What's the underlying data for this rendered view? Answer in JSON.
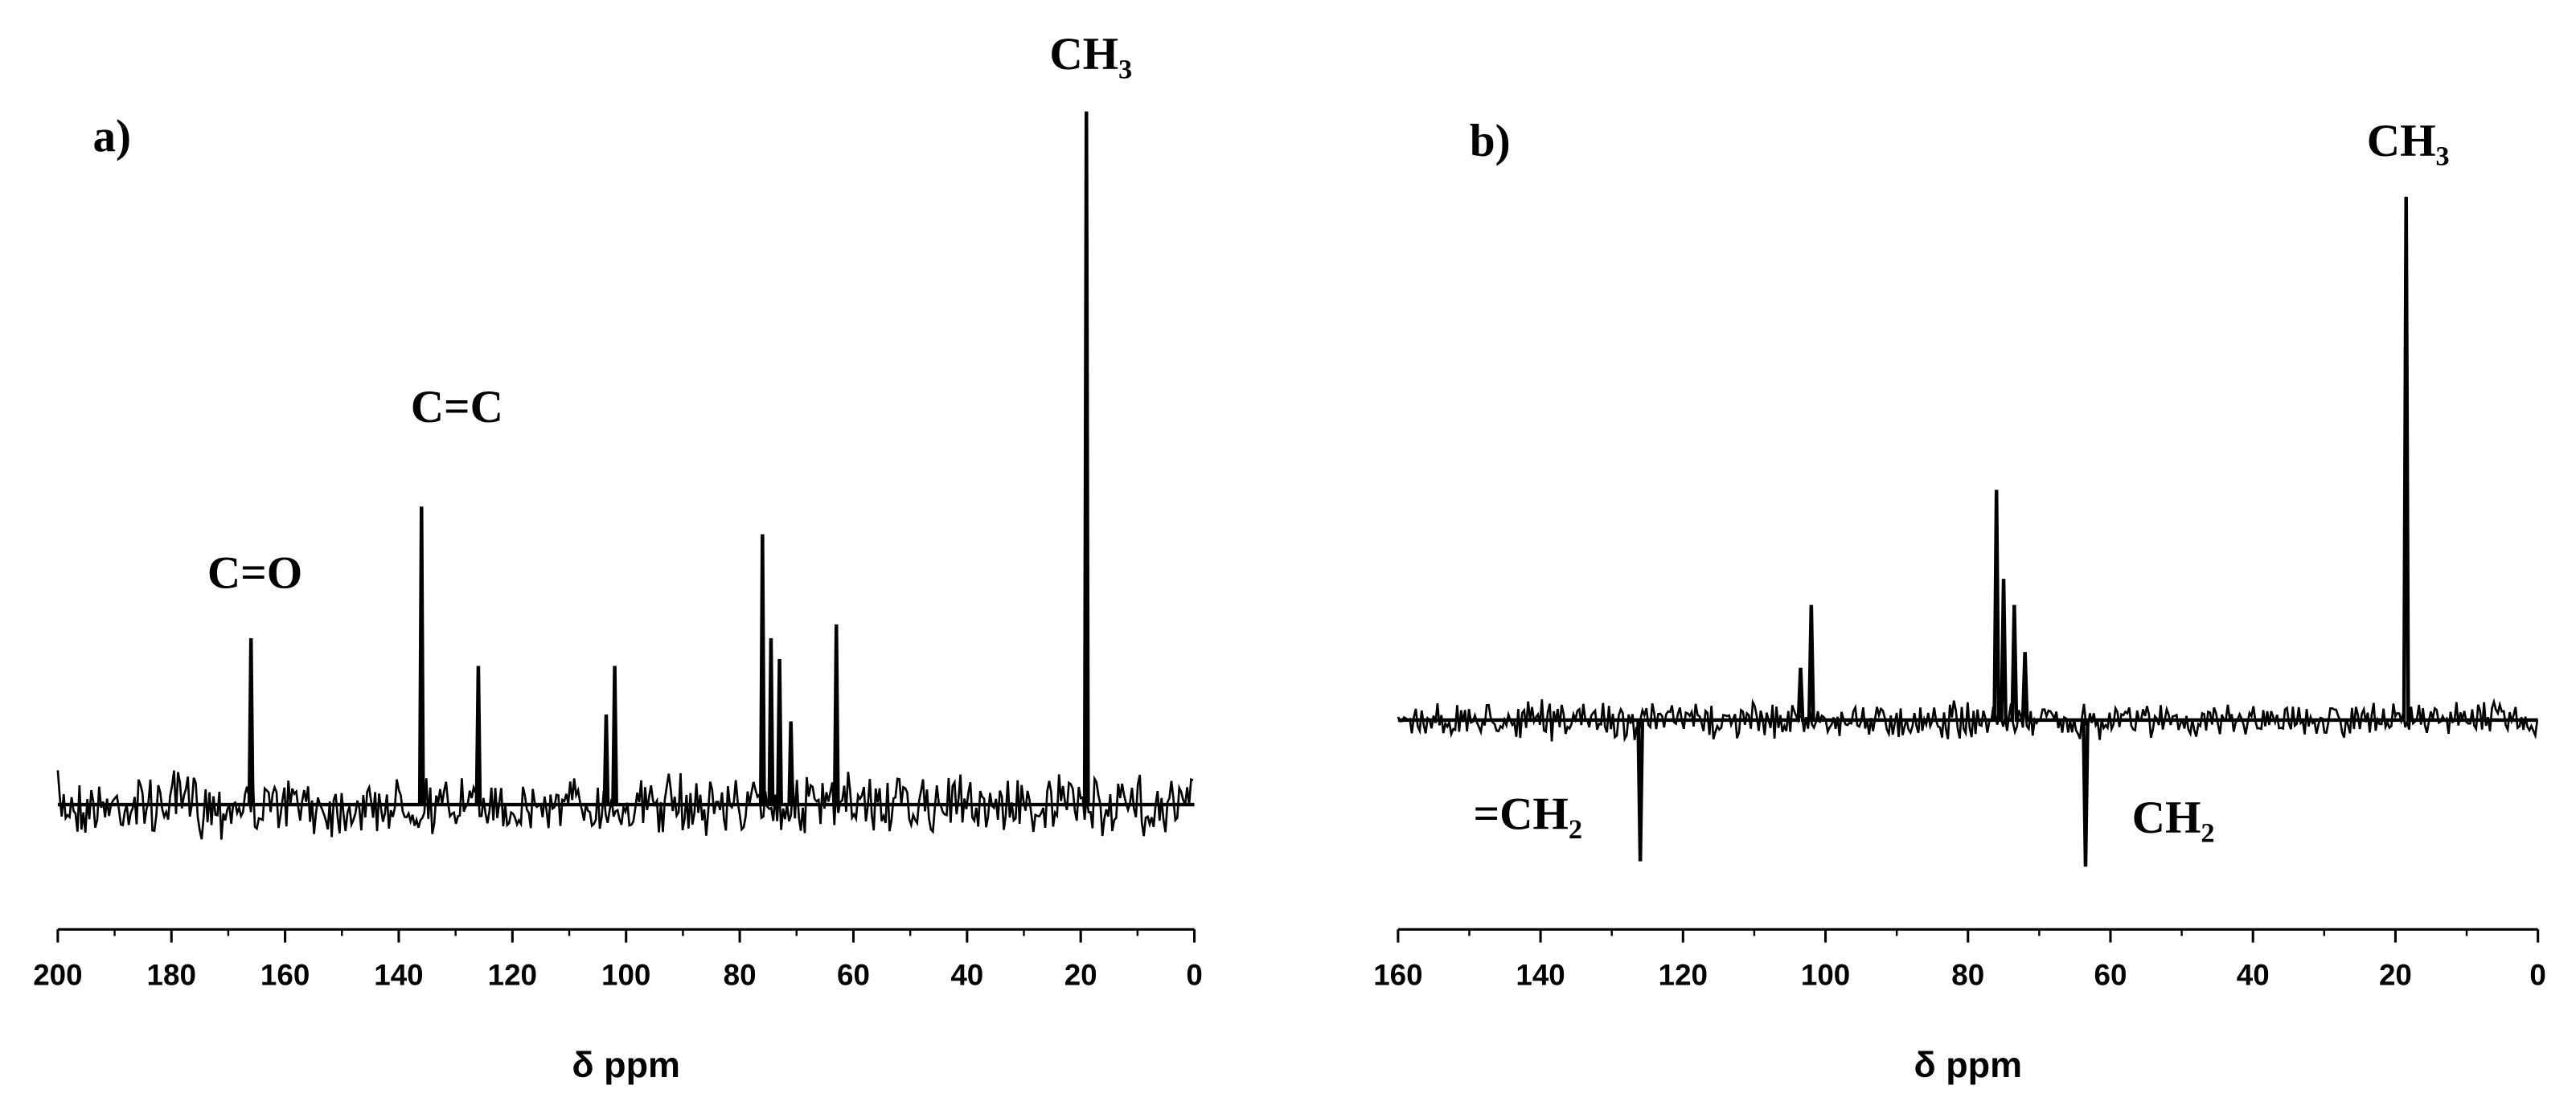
{
  "chart_data": [
    {
      "type": "line",
      "panel": "a)",
      "xlabel": "δ ppm",
      "xlim": [
        200,
        0
      ],
      "ylim": [
        -18,
        113
      ],
      "xticks": [
        200,
        180,
        160,
        140,
        120,
        100,
        80,
        60,
        40,
        20,
        0
      ],
      "annotations": [
        "C=O",
        "C=C",
        "CH₃"
      ],
      "series": [
        {
          "color": "#000000",
          "x": [
            0,
            18.7,
            19,
            19.3,
            62.7,
            63,
            63.3,
            70.7,
            71,
            71.3,
            72.7,
            73,
            73.3,
            74.2,
            74.5,
            74.8,
            75.7,
            76,
            76.3,
            101.7,
            102,
            102.3,
            103.2,
            103.5,
            103.8,
            125.7,
            126,
            126.3,
            135.7,
            136,
            136.3,
            165.7,
            166,
            166.3,
            200
          ],
          "values": [
            0,
            0,
            100,
            0,
            0,
            26,
            0,
            0,
            12,
            0,
            0,
            21,
            0,
            0,
            24,
            0,
            0,
            39,
            0,
            0,
            20,
            0,
            0,
            13,
            0,
            0,
            20,
            0,
            0,
            43,
            0,
            0,
            24,
            0,
            0
          ]
        }
      ]
    },
    {
      "type": "line",
      "panel": "b)",
      "xlabel": "δ ppm",
      "xlim": [
        160,
        0
      ],
      "ylim": [
        -40,
        110
      ],
      "xticks": [
        160,
        140,
        120,
        100,
        80,
        60,
        40,
        20,
        0
      ],
      "annotations": [
        "CH₃",
        "=CH₂",
        "CH₂"
      ],
      "series": [
        {
          "color": "#000000",
          "x": [
            0,
            18.2,
            18.5,
            18.8,
            63.2,
            63.5,
            63.8,
            71.7,
            72,
            72.3,
            73.2,
            73.5,
            73.8,
            74.7,
            75,
            75.3,
            75.7,
            76,
            76.3,
            101.7,
            102,
            102.3,
            103.2,
            103.5,
            103.8,
            125.7,
            126,
            126.3,
            160
          ],
          "values": [
            0,
            0,
            100,
            0,
            0,
            -28,
            0,
            0,
            13,
            0,
            0,
            22,
            0,
            0,
            27,
            0,
            0,
            44,
            0,
            0,
            22,
            0,
            0,
            10,
            0,
            0,
            -27,
            0,
            0
          ]
        }
      ]
    }
  ]
}
